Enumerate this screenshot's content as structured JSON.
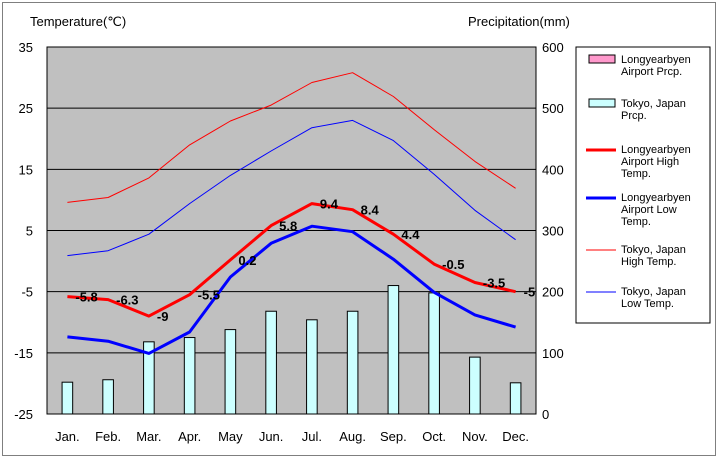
{
  "chart_data": {
    "type": "bar",
    "left_axis_title": "Temperature(℃)",
    "right_axis_title": "Precipitation(mm)",
    "categories": [
      "Jan.",
      "Feb.",
      "Mar.",
      "Apr.",
      "May",
      "Jun.",
      "Jul.",
      "Aug.",
      "Sep.",
      "Oct.",
      "Nov.",
      "Dec."
    ],
    "ylim_left": [
      -25,
      35
    ],
    "yticks_left": [
      35,
      25,
      15,
      5,
      -5,
      -15,
      -25
    ],
    "ylim_right": [
      0,
      600
    ],
    "yticks_right": [
      600,
      500,
      400,
      300,
      200,
      100,
      0
    ],
    "grid": true,
    "legend_position": "right",
    "plot_background": "#c0c0c0",
    "series": [
      {
        "name": "Longyearbyen Airport Prcp.",
        "legend_lines": [
          "Longyearbyen",
          "Airport Prcp."
        ],
        "type": "bar",
        "axis": "right",
        "color": "#ff99cc",
        "values": [
          null,
          null,
          null,
          null,
          null,
          null,
          null,
          null,
          null,
          null,
          null,
          null
        ]
      },
      {
        "name": "Tokyo, Japan Prcp.",
        "legend_lines": [
          "Tokyo, Japan",
          "Prcp."
        ],
        "type": "bar",
        "axis": "right",
        "color": "#ccffff",
        "values": [
          52,
          56,
          118,
          125,
          138,
          168,
          154,
          168,
          210,
          198,
          93,
          51
        ]
      },
      {
        "name": "Longyearbyen Airport High Temp.",
        "legend_lines": [
          "Longyearbyen",
          "Airport High",
          "Temp."
        ],
        "type": "line",
        "axis": "left",
        "color": "#ff0000",
        "width": 3,
        "values": [
          -5.8,
          -6.3,
          -9.0,
          -5.5,
          0.2,
          5.8,
          9.4,
          8.4,
          4.4,
          -0.5,
          -3.5,
          -5.0
        ],
        "data_labels": [
          "-5.8",
          "-6.3",
          "-9",
          "-5.5",
          "0.2",
          "5.8",
          "9.4",
          "8.4",
          "4.4",
          "-0.5",
          "-3.5",
          "-5"
        ]
      },
      {
        "name": "Longyearbyen Airport Low Temp.",
        "legend_lines": [
          "Longyearbyen",
          "Airport Low",
          "Temp."
        ],
        "type": "line",
        "axis": "left",
        "color": "#0000ff",
        "width": 3,
        "values": [
          -12.4,
          -13.1,
          -15.1,
          -11.6,
          -2.6,
          2.9,
          5.7,
          4.8,
          0.3,
          -5.1,
          -8.8,
          -10.8
        ]
      },
      {
        "name": "Tokyo, Japan High Temp.",
        "legend_lines": [
          "Tokyo, Japan",
          "High Temp."
        ],
        "type": "line",
        "axis": "left",
        "color": "#ff0000",
        "width": 1,
        "values": [
          9.6,
          10.4,
          13.6,
          19.0,
          22.9,
          25.5,
          29.2,
          30.8,
          26.9,
          21.5,
          16.3,
          11.9
        ]
      },
      {
        "name": "Tokyo, Japan Low Temp.",
        "legend_lines": [
          "Tokyo, Japan",
          "Low Temp."
        ],
        "type": "line",
        "axis": "left",
        "color": "#0000ff",
        "width": 1,
        "values": [
          0.9,
          1.7,
          4.4,
          9.4,
          14.0,
          18.0,
          21.8,
          23.0,
          19.7,
          14.2,
          8.3,
          3.5
        ]
      }
    ]
  }
}
